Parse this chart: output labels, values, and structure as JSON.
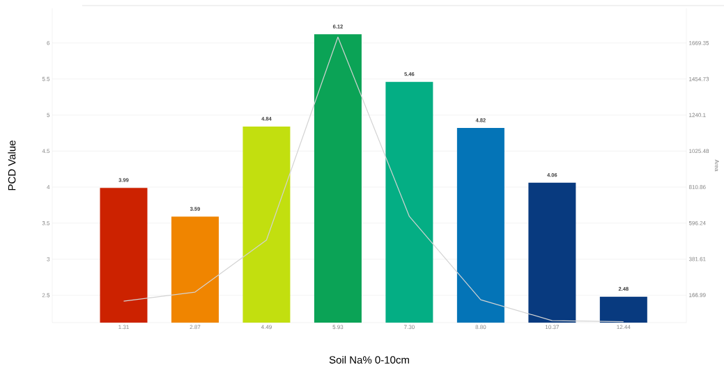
{
  "chart_data": {
    "type": "bar",
    "xlabel": "Soil Na% 0-10cm",
    "ylabel": "PCD Value",
    "y2label": "Area",
    "categories": [
      "1.31",
      "2.87",
      "4.49",
      "5.93",
      "7.30",
      "8.80",
      "10.37",
      "12.44"
    ],
    "ylim": [
      2.12,
      6.48
    ],
    "yticks": [
      2.5,
      3,
      3.5,
      4,
      4.5,
      5,
      5.5,
      6
    ],
    "y2lim": [
      3,
      1876
    ],
    "y2ticks": [
      166.99,
      381.61,
      596.24,
      810.86,
      1025.48,
      1240.1,
      1454.73,
      1669.35
    ],
    "grid": "y",
    "series": [
      {
        "values": [
          3.99,
          3.59,
          4.84,
          6.12,
          5.46,
          4.82,
          4.06,
          2.48
        ],
        "value_labels": [
          "3.99",
          "3.59",
          "4.84",
          "6.12",
          "5.46",
          "4.82",
          "4.06",
          "2.48"
        ],
        "colors": [
          "#cc2200",
          "#f08500",
          "#c2df0f",
          "#0ba356",
          "#04ae84",
          "#0474b7",
          "#083a7f",
          "#083a7f"
        ]
      },
      {
        "type": "line",
        "axis": "y2",
        "color": "#d3d3d3",
        "values": [
          131,
          185,
          495,
          1705,
          636,
          139,
          15,
          9
        ]
      }
    ]
  }
}
